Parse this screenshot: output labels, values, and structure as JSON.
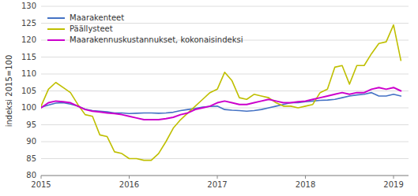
{
  "chart_data": {
    "type": "line",
    "ylabel": "indeksi 2015=100",
    "x": [
      2015.0,
      2015.0833333333333,
      2015.1666666666667,
      2015.25,
      2015.3333333333333,
      2015.4166666666667,
      2015.5,
      2015.5833333333333,
      2015.6666666666667,
      2015.75,
      2015.8333333333333,
      2015.9166666666667,
      2016.0,
      2016.0833333333333,
      2016.1666666666667,
      2016.25,
      2016.3333333333333,
      2016.4166666666667,
      2016.5,
      2016.5833333333333,
      2016.6666666666667,
      2016.75,
      2016.8333333333333,
      2016.9166666666667,
      2017.0,
      2017.0833333333333,
      2017.1666666666667,
      2017.25,
      2017.3333333333333,
      2017.4166666666667,
      2017.5,
      2017.5833333333333,
      2017.6666666666667,
      2017.75,
      2017.8333333333333,
      2017.9166666666667,
      2018.0,
      2018.0833333333333,
      2018.1666666666667,
      2018.25,
      2018.3333333333333,
      2018.4166666666667,
      2018.5,
      2018.5833333333333,
      2018.6666666666667,
      2018.75,
      2018.8333333333333,
      2018.9166666666667,
      2019.0,
      2019.0833333333333
    ],
    "xlim": [
      2015.0,
      2019.17
    ],
    "xticks": [
      2015,
      2016,
      2017,
      2018,
      2019
    ],
    "ylim": [
      80,
      130
    ],
    "yticks": [
      80,
      85,
      90,
      95,
      100,
      105,
      110,
      115,
      120,
      125,
      130
    ],
    "grid": true,
    "legend": "upper left",
    "series": [
      {
        "name": "Maarakenteet",
        "color": "#4472c4",
        "values": [
          100.2,
          100.8,
          101.4,
          101.5,
          101.1,
          100.5,
          99.6,
          99.2,
          99.0,
          98.8,
          98.5,
          98.5,
          98.3,
          98.4,
          98.5,
          98.5,
          98.4,
          98.5,
          98.7,
          99.2,
          99.5,
          99.8,
          100.2,
          100.4,
          100.5,
          99.5,
          99.3,
          99.2,
          99.0,
          99.2,
          99.5,
          100.0,
          100.5,
          101.0,
          101.5,
          101.5,
          101.8,
          102.0,
          102.2,
          102.3,
          102.5,
          103.0,
          103.5,
          103.8,
          104.0,
          104.5,
          103.5,
          103.5,
          104.0,
          103.5
        ]
      },
      {
        "name": "Päällysteet",
        "color": "#bfbf00",
        "values": [
          100.5,
          105.5,
          107.5,
          106.0,
          104.5,
          101.0,
          98.0,
          97.5,
          92.0,
          91.5,
          87.0,
          86.5,
          85.0,
          85.0,
          84.5,
          84.5,
          86.5,
          90.0,
          94.0,
          96.5,
          98.5,
          100.5,
          102.5,
          104.5,
          105.5,
          110.5,
          108.0,
          103.0,
          102.5,
          104.0,
          103.5,
          103.0,
          101.5,
          100.5,
          100.5,
          100.0,
          100.5,
          101.0,
          104.5,
          105.5,
          112.0,
          112.5,
          107.0,
          112.5,
          112.5,
          116.0,
          119.0,
          119.5,
          124.5,
          114.0
        ]
      },
      {
        "name": "Maarakennuskustannukset, kokonaisindeksi",
        "color": "#cc00cc",
        "values": [
          100.0,
          101.5,
          102.0,
          101.8,
          101.5,
          100.5,
          99.5,
          99.0,
          98.8,
          98.5,
          98.3,
          98.0,
          97.5,
          97.0,
          96.5,
          96.5,
          96.5,
          96.8,
          97.2,
          98.0,
          98.5,
          99.5,
          100.0,
          100.5,
          101.5,
          102.0,
          101.5,
          101.0,
          101.0,
          101.5,
          102.0,
          102.5,
          102.0,
          101.5,
          101.5,
          101.8,
          102.0,
          102.5,
          103.0,
          103.5,
          104.0,
          104.5,
          104.0,
          104.5,
          104.5,
          105.5,
          106.0,
          105.5,
          106.0,
          105.0
        ]
      }
    ]
  }
}
